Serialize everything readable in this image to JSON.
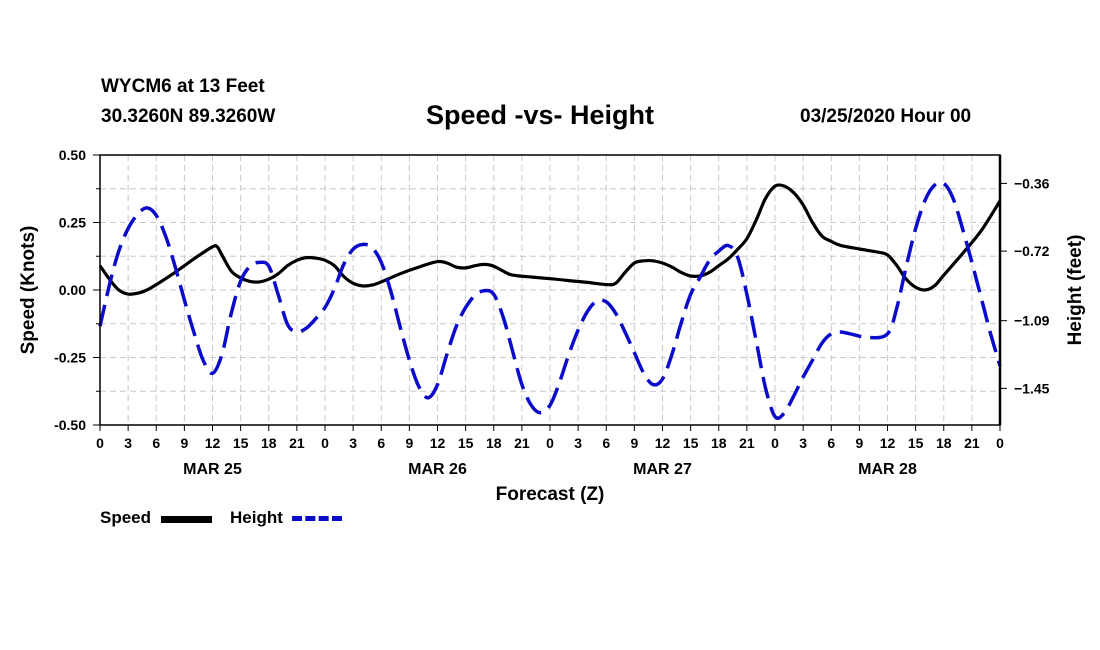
{
  "header": {
    "station": "WYCM6 at 13 Feet",
    "coords": "30.3260N 89.3260W",
    "title": "Speed -vs- Height",
    "date": "03/25/2020 Hour 00"
  },
  "legend": {
    "speed_label": "Speed",
    "height_label": "Height",
    "speed_color": "#000000",
    "height_color": "#0b0bcc"
  },
  "chart_data": {
    "type": "line",
    "title": "Speed -vs- Height",
    "xlabel": "Forecast (Z)",
    "ylabel": "Speed (Knots)",
    "y2label": "Height (feet)",
    "x_range_hours": [
      0,
      96
    ],
    "ylim": [
      -0.5,
      0.5
    ],
    "y2lim": [
      -1.6448,
      -0.2088
    ],
    "yticks": [
      "0.50",
      "0.25",
      "0.00",
      "-0.25",
      "-0.50"
    ],
    "y2ticks": [
      {
        "value": -0.36,
        "label": "-0.36"
      },
      {
        "value": -0.72,
        "label": "-0.72"
      },
      {
        "value": -1.09,
        "label": "-1.09"
      },
      {
        "value": -1.45,
        "label": "-1.45"
      }
    ],
    "xticks": [
      {
        "h": 0,
        "label": "0"
      },
      {
        "h": 3,
        "label": "3"
      },
      {
        "h": 6,
        "label": "6"
      },
      {
        "h": 9,
        "label": "9"
      },
      {
        "h": 12,
        "label": "12"
      },
      {
        "h": 15,
        "label": "15"
      },
      {
        "h": 18,
        "label": "18"
      },
      {
        "h": 21,
        "label": "21"
      },
      {
        "h": 24,
        "label": "0"
      },
      {
        "h": 27,
        "label": "3"
      },
      {
        "h": 30,
        "label": "6"
      },
      {
        "h": 33,
        "label": "9"
      },
      {
        "h": 36,
        "label": "12"
      },
      {
        "h": 39,
        "label": "15"
      },
      {
        "h": 42,
        "label": "18"
      },
      {
        "h": 45,
        "label": "21"
      },
      {
        "h": 48,
        "label": "0"
      },
      {
        "h": 51,
        "label": "3"
      },
      {
        "h": 54,
        "label": "6"
      },
      {
        "h": 57,
        "label": "9"
      },
      {
        "h": 60,
        "label": "12"
      },
      {
        "h": 63,
        "label": "15"
      },
      {
        "h": 66,
        "label": "18"
      },
      {
        "h": 69,
        "label": "21"
      },
      {
        "h": 72,
        "label": "0"
      },
      {
        "h": 75,
        "label": "3"
      },
      {
        "h": 78,
        "label": "6"
      },
      {
        "h": 81,
        "label": "9"
      },
      {
        "h": 84,
        "label": "12"
      },
      {
        "h": 87,
        "label": "15"
      },
      {
        "h": 90,
        "label": "18"
      },
      {
        "h": 93,
        "label": "21"
      },
      {
        "h": 96,
        "label": "0"
      }
    ],
    "day_labels": [
      {
        "h": 12,
        "label": "MAR 25"
      },
      {
        "h": 36,
        "label": "MAR 26"
      },
      {
        "h": 60,
        "label": "MAR 27"
      },
      {
        "h": 84,
        "label": "MAR 28"
      }
    ],
    "series": [
      {
        "name": "Speed",
        "axis": "left",
        "color": "#000000",
        "dash": "solid",
        "points": [
          [
            0,
            0.09
          ],
          [
            1,
            0.04
          ],
          [
            2,
            0.0
          ],
          [
            3,
            -0.015
          ],
          [
            4,
            -0.012
          ],
          [
            5,
            0.0
          ],
          [
            6,
            0.02
          ],
          [
            8,
            0.065
          ],
          [
            10,
            0.115
          ],
          [
            12,
            0.16
          ],
          [
            12.5,
            0.16
          ],
          [
            13,
            0.13
          ],
          [
            14,
            0.07
          ],
          [
            15,
            0.045
          ],
          [
            16,
            0.032
          ],
          [
            17,
            0.03
          ],
          [
            18,
            0.04
          ],
          [
            19,
            0.06
          ],
          [
            20,
            0.09
          ],
          [
            21,
            0.11
          ],
          [
            22,
            0.12
          ],
          [
            23,
            0.118
          ],
          [
            24,
            0.11
          ],
          [
            25,
            0.09
          ],
          [
            26,
            0.05
          ],
          [
            27,
            0.025
          ],
          [
            28,
            0.015
          ],
          [
            29,
            0.018
          ],
          [
            30,
            0.03
          ],
          [
            32,
            0.06
          ],
          [
            34,
            0.085
          ],
          [
            36,
            0.105
          ],
          [
            37,
            0.1
          ],
          [
            38,
            0.085
          ],
          [
            39,
            0.082
          ],
          [
            40,
            0.09
          ],
          [
            41,
            0.095
          ],
          [
            42,
            0.088
          ],
          [
            43,
            0.07
          ],
          [
            44,
            0.055
          ],
          [
            46,
            0.048
          ],
          [
            48,
            0.042
          ],
          [
            50,
            0.035
          ],
          [
            52,
            0.028
          ],
          [
            54,
            0.02
          ],
          [
            55,
            0.025
          ],
          [
            56,
            0.065
          ],
          [
            57,
            0.1
          ],
          [
            58,
            0.108
          ],
          [
            59,
            0.108
          ],
          [
            60,
            0.1
          ],
          [
            61,
            0.085
          ],
          [
            62,
            0.065
          ],
          [
            63,
            0.052
          ],
          [
            64,
            0.052
          ],
          [
            65,
            0.065
          ],
          [
            66,
            0.09
          ],
          [
            67,
            0.115
          ],
          [
            68,
            0.15
          ],
          [
            69,
            0.19
          ],
          [
            70,
            0.26
          ],
          [
            71,
            0.34
          ],
          [
            72,
            0.385
          ],
          [
            73,
            0.385
          ],
          [
            74,
            0.36
          ],
          [
            75,
            0.315
          ],
          [
            76,
            0.25
          ],
          [
            77,
            0.2
          ],
          [
            78,
            0.18
          ],
          [
            79,
            0.165
          ],
          [
            81,
            0.152
          ],
          [
            83,
            0.14
          ],
          [
            84,
            0.13
          ],
          [
            85,
            0.09
          ],
          [
            86,
            0.04
          ],
          [
            87,
            0.01
          ],
          [
            88,
            0.0
          ],
          [
            89,
            0.015
          ],
          [
            90,
            0.055
          ],
          [
            92,
            0.135
          ],
          [
            94,
            0.22
          ],
          [
            96,
            0.33
          ]
        ]
      },
      {
        "name": "Height",
        "axis": "right",
        "color": "#0b0bcc",
        "dash": "dashed",
        "points": [
          [
            0,
            -1.12
          ],
          [
            1,
            -0.9
          ],
          [
            2,
            -0.72
          ],
          [
            3,
            -0.6
          ],
          [
            4,
            -0.525
          ],
          [
            5,
            -0.49
          ],
          [
            6,
            -0.53
          ],
          [
            7,
            -0.64
          ],
          [
            8,
            -0.8
          ],
          [
            9,
            -0.98
          ],
          [
            10,
            -1.15
          ],
          [
            11,
            -1.3
          ],
          [
            12,
            -1.37
          ],
          [
            13,
            -1.27
          ],
          [
            14,
            -1.05
          ],
          [
            15,
            -0.88
          ],
          [
            16,
            -0.8
          ],
          [
            17,
            -0.78
          ],
          [
            18,
            -0.8
          ],
          [
            19,
            -0.95
          ],
          [
            20,
            -1.11
          ],
          [
            21,
            -1.15
          ],
          [
            22,
            -1.13
          ],
          [
            23,
            -1.08
          ],
          [
            24,
            -1.02
          ],
          [
            25,
            -0.92
          ],
          [
            26,
            -0.79
          ],
          [
            27,
            -0.71
          ],
          [
            28,
            -0.685
          ],
          [
            29,
            -0.7
          ],
          [
            30,
            -0.78
          ],
          [
            31,
            -0.93
          ],
          [
            32,
            -1.12
          ],
          [
            33,
            -1.3
          ],
          [
            34,
            -1.44
          ],
          [
            35,
            -1.5
          ],
          [
            36,
            -1.43
          ],
          [
            37,
            -1.27
          ],
          [
            38,
            -1.12
          ],
          [
            39,
            -1.02
          ],
          [
            40,
            -0.955
          ],
          [
            41,
            -0.93
          ],
          [
            42,
            -0.95
          ],
          [
            43,
            -1.07
          ],
          [
            44,
            -1.25
          ],
          [
            45,
            -1.43
          ],
          [
            46,
            -1.54
          ],
          [
            47,
            -1.58
          ],
          [
            48,
            -1.54
          ],
          [
            49,
            -1.42
          ],
          [
            50,
            -1.27
          ],
          [
            51,
            -1.14
          ],
          [
            52,
            -1.04
          ],
          [
            53,
            -0.985
          ],
          [
            54,
            -0.99
          ],
          [
            55,
            -1.05
          ],
          [
            56,
            -1.15
          ],
          [
            57,
            -1.26
          ],
          [
            58,
            -1.37
          ],
          [
            59,
            -1.43
          ],
          [
            60,
            -1.4
          ],
          [
            61,
            -1.27
          ],
          [
            62,
            -1.1
          ],
          [
            63,
            -0.95
          ],
          [
            64,
            -0.86
          ],
          [
            65,
            -0.77
          ],
          [
            66,
            -0.72
          ],
          [
            67,
            -0.69
          ],
          [
            68,
            -0.75
          ],
          [
            69,
            -0.95
          ],
          [
            70,
            -1.2
          ],
          [
            71,
            -1.45
          ],
          [
            72,
            -1.6
          ],
          [
            73,
            -1.58
          ],
          [
            74,
            -1.49
          ],
          [
            75,
            -1.39
          ],
          [
            76,
            -1.3
          ],
          [
            77,
            -1.21
          ],
          [
            78,
            -1.16
          ],
          [
            79,
            -1.15
          ],
          [
            80,
            -1.16
          ],
          [
            82,
            -1.18
          ],
          [
            84,
            -1.16
          ],
          [
            85,
            -1.02
          ],
          [
            86,
            -0.8
          ],
          [
            87,
            -0.6
          ],
          [
            88,
            -0.45
          ],
          [
            89,
            -0.37
          ],
          [
            90,
            -0.36
          ],
          [
            91,
            -0.44
          ],
          [
            92,
            -0.6
          ],
          [
            93,
            -0.78
          ],
          [
            94,
            -0.97
          ],
          [
            95,
            -1.16
          ],
          [
            96,
            -1.33
          ]
        ]
      }
    ]
  }
}
